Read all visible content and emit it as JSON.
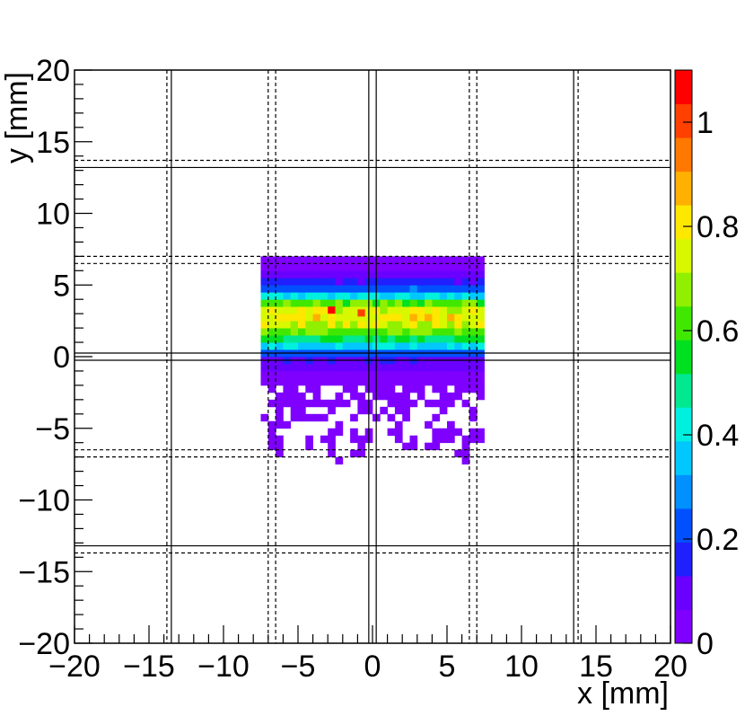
{
  "chart_data": {
    "type": "heatmap",
    "title": "",
    "xlabel": "x [mm]",
    "ylabel": "y [mm]",
    "xlim": [
      -20,
      20
    ],
    "ylim": [
      -20,
      20
    ],
    "x_ticks": [
      "−20",
      "−15",
      "−10",
      "−5",
      "0",
      "5",
      "10",
      "15",
      "20"
    ],
    "y_ticks": [
      "−20",
      "−15",
      "−10",
      "−5",
      "0",
      "5",
      "10",
      "15",
      "20"
    ],
    "colorbar": {
      "range": [
        0,
        1.1
      ],
      "ticks": [
        "0",
        "0.2",
        "0.4",
        "0.6",
        "0.8",
        "1"
      ],
      "palette": [
        "#7f00ff",
        "#6a00ff",
        "#2020ff",
        "#0050ff",
        "#0090ff",
        "#00c8ff",
        "#00f0e0",
        "#00e890",
        "#00e020",
        "#40e800",
        "#90f000",
        "#d8f800",
        "#ffe800",
        "#ffb000",
        "#ff7800",
        "#ff4000",
        "#ff0000"
      ]
    },
    "grid": false,
    "bin_size_mm": 0.5,
    "filled_region": {
      "x_range": [
        -7.5,
        7.5
      ],
      "dense_y_range": [
        -2,
        7
      ],
      "sparse_y_range": [
        -7.5,
        -2
      ]
    },
    "intensity_profile_y": [
      [
        -2.0,
        0.03
      ],
      [
        -1.0,
        0.05
      ],
      [
        0.0,
        0.15
      ],
      [
        0.5,
        0.3
      ],
      [
        1.0,
        0.45
      ],
      [
        1.5,
        0.6
      ],
      [
        2.0,
        0.7
      ],
      [
        2.5,
        0.78
      ],
      [
        3.0,
        0.8
      ],
      [
        3.5,
        0.72
      ],
      [
        4.0,
        0.5
      ],
      [
        4.5,
        0.3
      ],
      [
        5.0,
        0.18
      ],
      [
        5.5,
        0.1
      ],
      [
        6.0,
        0.05
      ],
      [
        7.0,
        0.03
      ]
    ],
    "hot_spots": [
      {
        "x": -3.0,
        "y": 3.0,
        "value": 1.05
      },
      {
        "x": -1.0,
        "y": 2.8,
        "value": 0.98
      }
    ],
    "guide_lines": {
      "solid_vertical": [
        -13.5,
        -0.25,
        0.25,
        13.5
      ],
      "dashed_vertical": [
        -13.8,
        -7.0,
        -6.5,
        6.5,
        7.0,
        13.8
      ],
      "solid_horizontal": [
        13.2,
        0.25,
        -0.25,
        -13.2
      ],
      "dashed_horizontal": [
        13.7,
        7.0,
        6.5,
        -6.5,
        -7.0,
        -13.7
      ]
    }
  }
}
